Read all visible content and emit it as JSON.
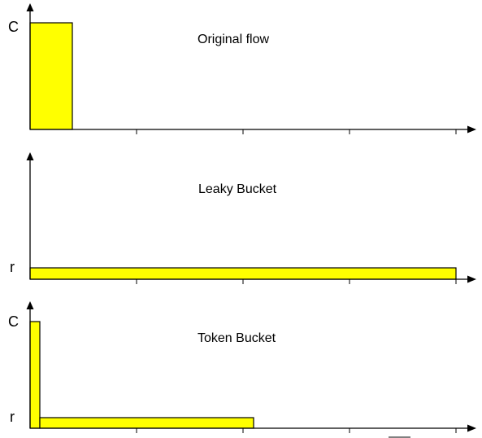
{
  "panels": [
    {
      "title": "Original flow",
      "y_labels": [
        "C"
      ]
    },
    {
      "title": "Leaky Bucket",
      "y_labels": [
        "r"
      ]
    },
    {
      "title": "Token Bucket",
      "y_labels": [
        "C",
        "r"
      ]
    }
  ],
  "colors": {
    "bar_fill": "#ffff00",
    "bar_stroke": "#000000",
    "axis": "#000000"
  }
}
